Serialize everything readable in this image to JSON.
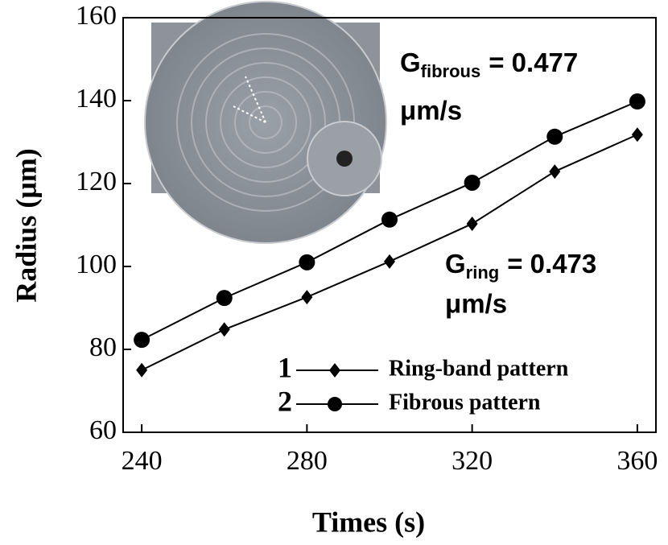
{
  "chart_data": {
    "type": "line",
    "x_label": "Times (s)",
    "y_label": "Radius (μm)",
    "x": [
      240,
      260,
      280,
      300,
      320,
      340,
      360
    ],
    "series": [
      {
        "name": "Ring-band pattern",
        "label": "1",
        "marker": "diamond",
        "color": "#000000",
        "values": [
          75,
          84.8,
          92.6,
          101.2,
          110.3,
          122.9,
          131.8
        ]
      },
      {
        "name": "Fibrous pattern",
        "label": "2",
        "marker": "circle",
        "color": "#000000",
        "values": [
          82.3,
          92.4,
          101,
          111.3,
          120.2,
          131.3,
          139.8
        ]
      }
    ],
    "xlim": [
      235.5,
      364.5
    ],
    "xticks": [
      240,
      280,
      320,
      360
    ],
    "ylim": [
      60,
      160
    ],
    "yticks": [
      60,
      80,
      100,
      120,
      140,
      160
    ],
    "legend": "lower right",
    "annotations": [
      {
        "symbol": "G",
        "subscript": "fibrous",
        "text": "= 0.477",
        "unit": "μm/s"
      },
      {
        "symbol": "G",
        "subscript": "ring",
        "text": "= 0.473",
        "unit": "μm/s"
      }
    ],
    "inset_labels": [
      "1",
      "2"
    ]
  }
}
